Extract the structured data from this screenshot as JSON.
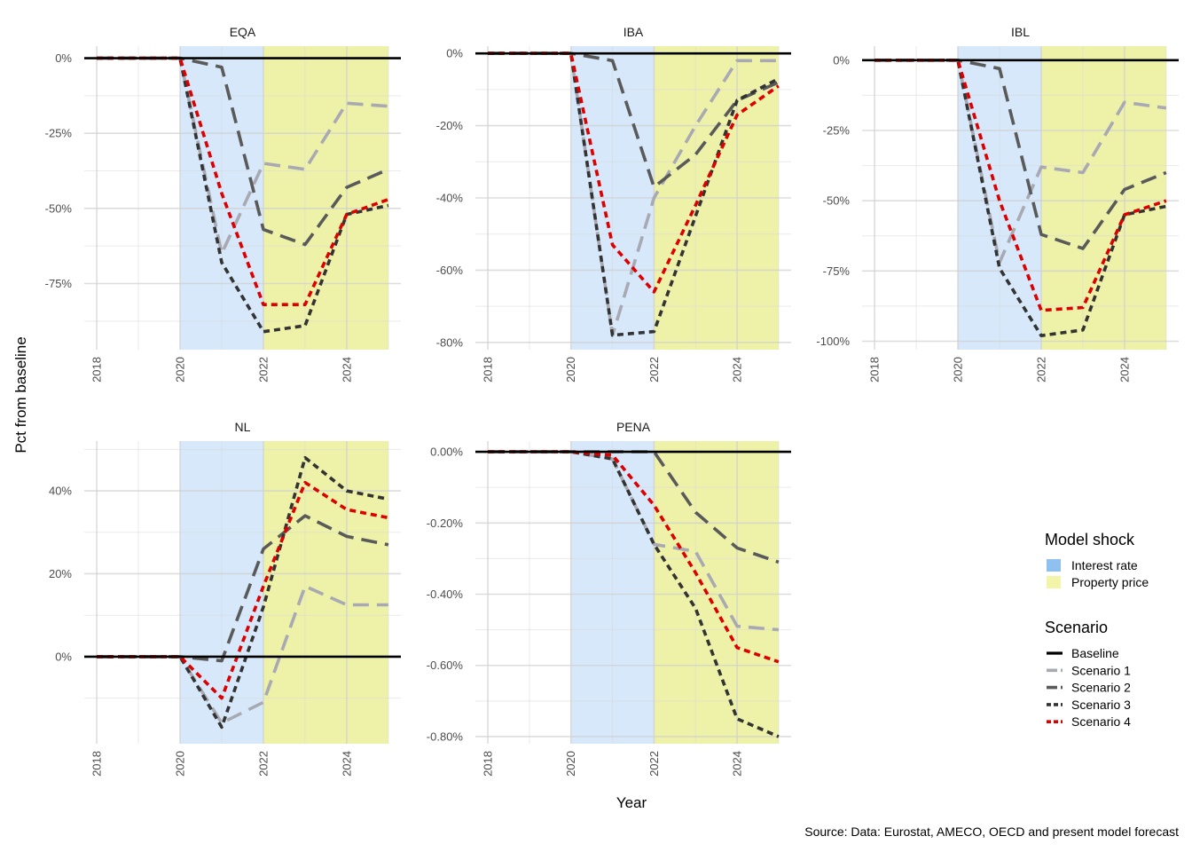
{
  "chart_data": {
    "type": "line",
    "xlabel": "Year",
    "ylabel": "Pct from baseline",
    "caption": "Source: Data: Eurostat, AMECO, OECD and present model forecast",
    "x": [
      2018,
      2019,
      2020,
      2021,
      2022,
      2023,
      2024,
      2025
    ],
    "xlim": [
      2017.7,
      2025.3
    ],
    "x_ticks": [
      2018,
      2020,
      2022,
      2024
    ],
    "grid": true,
    "shaded_regions": [
      {
        "name": "Interest rate",
        "from": 2020,
        "to": 2022,
        "color": "#d6e8fa"
      },
      {
        "name": "Property price",
        "from": 2022,
        "to": 2025,
        "color": "#eef2a8"
      }
    ],
    "legends": [
      {
        "title": "Model shock",
        "placement": "right",
        "entries": [
          {
            "label": "Interest rate",
            "color": "#8ec1ef"
          },
          {
            "label": "Property price",
            "color": "#f2f5a8"
          }
        ]
      },
      {
        "title": "Scenario",
        "placement": "right",
        "entries": [
          {
            "label": "Baseline",
            "color": "#000000",
            "dash": "solid"
          },
          {
            "label": "Scenario 1",
            "color": "#a9a9b4",
            "dash": "longdash"
          },
          {
            "label": "Scenario 2",
            "color": "#5a5a5a",
            "dash": "longdash"
          },
          {
            "label": "Scenario 3",
            "color": "#333333",
            "dash": "dash"
          },
          {
            "label": "Scenario 4",
            "color": "#dd0000",
            "dash": "dash"
          }
        ]
      }
    ],
    "facets": [
      {
        "title": "EQA",
        "ylim": [
          -97,
          4
        ],
        "y_ticks": [
          0,
          -25,
          -50,
          -75
        ],
        "y_tick_labels": [
          "0%",
          "-25%",
          "-50%",
          "-75%"
        ],
        "series": [
          {
            "name": "Baseline",
            "values": [
              0,
              0,
              0,
              0,
              0,
              0,
              0,
              0
            ]
          },
          {
            "name": "Scenario 1",
            "values": [
              0,
              0,
              0,
              -65,
              -35,
              -37,
              -15,
              -16
            ]
          },
          {
            "name": "Scenario 2",
            "values": [
              0,
              0,
              0,
              -3,
              -57,
              -62,
              -43,
              -37
            ]
          },
          {
            "name": "Scenario 3",
            "values": [
              0,
              0,
              0,
              -68,
              -91,
              -89,
              -52,
              -49
            ]
          },
          {
            "name": "Scenario 4",
            "values": [
              0,
              0,
              0,
              -45,
              -82,
              -82,
              -52,
              -47
            ]
          }
        ]
      },
      {
        "title": "IBA",
        "ylim": [
          -82,
          2
        ],
        "y_ticks": [
          0,
          -20,
          -40,
          -60,
          -80
        ],
        "y_tick_labels": [
          "0%",
          "-20%",
          "-40%",
          "-60%",
          "-80%"
        ],
        "series": [
          {
            "name": "Baseline",
            "values": [
              0,
              0,
              0,
              0,
              0,
              0,
              0,
              0
            ]
          },
          {
            "name": "Scenario 1",
            "values": [
              0,
              0,
              0,
              -78,
              -40,
              -20,
              -2,
              -2
            ]
          },
          {
            "name": "Scenario 2",
            "values": [
              0,
              0,
              0,
              -2,
              -37,
              -28,
              -13,
              -8
            ]
          },
          {
            "name": "Scenario 3",
            "values": [
              0,
              0,
              0,
              -78,
              -77,
              -45,
              -13,
              -7
            ]
          },
          {
            "name": "Scenario 4",
            "values": [
              0,
              0,
              0,
              -53,
              -66,
              -42,
              -17,
              -9
            ]
          }
        ]
      },
      {
        "title": "IBL",
        "ylim": [
          -103,
          5
        ],
        "y_ticks": [
          0,
          -25,
          -50,
          -75,
          -100
        ],
        "y_tick_labels": [
          "0%",
          "-25%",
          "-50%",
          "-75%",
          "-100%"
        ],
        "series": [
          {
            "name": "Baseline",
            "values": [
              0,
              0,
              0,
              0,
              0,
              0,
              0,
              0
            ]
          },
          {
            "name": "Scenario 1",
            "values": [
              0,
              0,
              0,
              -72,
              -38,
              -40,
              -15,
              -17
            ]
          },
          {
            "name": "Scenario 2",
            "values": [
              0,
              0,
              0,
              -3,
              -62,
              -67,
              -46,
              -40
            ]
          },
          {
            "name": "Scenario 3",
            "values": [
              0,
              0,
              0,
              -74,
              -98,
              -96,
              -55,
              -52
            ]
          },
          {
            "name": "Scenario 4",
            "values": [
              0,
              0,
              0,
              -50,
              -89,
              -88,
              -55,
              -50
            ]
          }
        ]
      },
      {
        "title": "NL",
        "ylim": [
          -21,
          52
        ],
        "y_ticks": [
          0,
          20,
          40
        ],
        "y_tick_labels": [
          "0%",
          "20%",
          "40%"
        ],
        "series": [
          {
            "name": "Baseline",
            "values": [
              0,
              0,
              0,
              0,
              0,
              0,
              0,
              0
            ]
          },
          {
            "name": "Scenario 1",
            "values": [
              0,
              0,
              0,
              -16,
              -11,
              17,
              12.5,
              12.5
            ]
          },
          {
            "name": "Scenario 2",
            "values": [
              0,
              0,
              0,
              -1,
              26,
              34,
              29,
              27
            ]
          },
          {
            "name": "Scenario 3",
            "values": [
              0,
              0,
              0,
              -17,
              12,
              48,
              40,
              38
            ]
          },
          {
            "name": "Scenario 4",
            "values": [
              0,
              0,
              0,
              -10,
              17,
              42,
              35.5,
              33.5
            ]
          }
        ]
      },
      {
        "title": "PENA",
        "ylim": [
          -0.82,
          0.03
        ],
        "y_ticks": [
          0,
          -0.2,
          -0.4,
          -0.6,
          -0.8
        ],
        "y_tick_labels": [
          "0.00%",
          "-0.20%",
          "-0.40%",
          "-0.60%",
          "-0.80%"
        ],
        "series": [
          {
            "name": "Baseline",
            "values": [
              0,
              0,
              0,
              0,
              0,
              0,
              0,
              0
            ]
          },
          {
            "name": "Scenario 1",
            "values": [
              0,
              0,
              0,
              -0.02,
              -0.26,
              -0.28,
              -0.49,
              -0.5
            ]
          },
          {
            "name": "Scenario 2",
            "values": [
              0,
              0,
              0,
              0,
              0,
              -0.17,
              -0.27,
              -0.31
            ]
          },
          {
            "name": "Scenario 3",
            "values": [
              0,
              0,
              0,
              -0.02,
              -0.26,
              -0.44,
              -0.75,
              -0.8
            ]
          },
          {
            "name": "Scenario 4",
            "values": [
              0,
              0,
              0,
              -0.01,
              -0.15,
              -0.34,
              -0.55,
              -0.59
            ]
          }
        ]
      }
    ]
  }
}
